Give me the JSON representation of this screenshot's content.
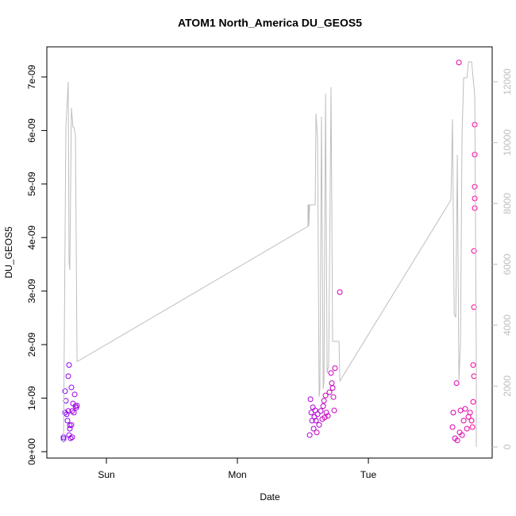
{
  "chart_data": {
    "type": "scatter",
    "title": "ATOM1 North_America DU_GEOS5",
    "xlabel": "Date",
    "ylabel": "DU_GEOS5",
    "xlim": [
      -0.4545,
      2.945
    ],
    "xticks": [
      {
        "value": 0,
        "label": "Sun"
      },
      {
        "value": 1,
        "label": "Mon"
      },
      {
        "value": 2,
        "label": "Tue"
      }
    ],
    "ylim": [
      -1.19e-10,
      7.563e-09
    ],
    "yticks": [
      {
        "value": 0,
        "label": "0e+00"
      },
      {
        "value": 1e-09,
        "label": "1e-09"
      },
      {
        "value": 2e-09,
        "label": "2e-09"
      },
      {
        "value": 3e-09,
        "label": "3e-09"
      },
      {
        "value": 4e-09,
        "label": "4e-09"
      },
      {
        "value": 5e-09,
        "label": "5e-09"
      },
      {
        "value": 6e-09,
        "label": "6e-09"
      },
      {
        "value": 7e-09,
        "label": "7e-09"
      }
    ],
    "y2lim": [
      -365,
      13148
    ],
    "y2ticks": [
      0,
      2000,
      4000,
      6000,
      8000,
      10000,
      12000
    ],
    "y2tick_color": "#bebebe",
    "series": [
      {
        "color_range": [
          "#7f00ff",
          "#ff0090"
        ],
        "x": [
          -0.327,
          -0.327,
          -0.315,
          -0.315,
          -0.309,
          -0.303,
          -0.297,
          -0.291,
          -0.285,
          -0.285,
          -0.279,
          -0.273,
          -0.267,
          -0.267,
          -0.261,
          -0.255,
          -0.248,
          -0.242,
          -0.236,
          -0.23,
          -0.224,
          -0.279,
          -0.291,
          -0.261,
          1.552,
          1.558,
          1.564,
          1.57,
          1.576,
          1.582,
          1.588,
          1.594,
          1.6,
          1.612,
          1.624,
          1.636,
          1.648,
          1.655,
          1.661,
          1.673,
          1.679,
          1.691,
          1.703,
          1.715,
          1.721,
          1.727,
          1.733,
          1.739,
          1.745,
          1.782,
          1.606,
          1.667,
          2.642,
          2.648,
          2.661,
          2.673,
          2.679,
          2.691,
          2.697,
          2.703,
          2.715,
          2.727,
          2.739,
          2.752,
          2.764,
          2.776,
          2.788,
          2.8,
          2.8,
          2.806,
          2.806,
          2.806,
          2.812,
          2.812,
          2.812,
          2.812,
          2.812,
          2.794
        ],
        "values": [
          2.4e-10,
          2.7e-10,
          1.13e-09,
          7.3e-10,
          9.5e-10,
          7e-10,
          5.8e-10,
          1.41e-09,
          1.62e-09,
          3.1e-10,
          4.3e-10,
          2.5e-10,
          1.2e-09,
          5e-10,
          7.6e-10,
          9e-10,
          7.3e-10,
          1.07e-09,
          8.5e-10,
          8.2e-10,
          8.6e-10,
          4.9e-10,
          7.6e-10,
          2.7e-10,
          3.1e-10,
          9.8e-10,
          7.3e-10,
          5.8e-10,
          8.3e-10,
          4.3e-10,
          6.5e-10,
          7.7e-10,
          5.8e-10,
          7e-10,
          5e-10,
          7.6e-10,
          6.1e-10,
          8.5e-10,
          9.5e-10,
          1.05e-09,
          7.3e-10,
          6.7e-10,
          1.11e-09,
          1.47e-09,
          1.28e-09,
          1.19e-09,
          1.02e-09,
          7.7e-10,
          1.56e-09,
          2.98e-09,
          3.6e-10,
          6.4e-10,
          4.6e-10,
          7.3e-10,
          2.5e-10,
          1.28e-09,
          2.1e-10,
          7.27e-09,
          3.6e-10,
          7.7e-10,
          3.1e-10,
          5.8e-10,
          8e-10,
          4.3e-10,
          6.5e-10,
          7.3e-10,
          5.8e-10,
          9.3e-10,
          1.62e-09,
          1.41e-09,
          2.7e-09,
          3.75e-09,
          4.55e-09,
          4.73e-09,
          4.95e-09,
          5.55e-09,
          6.11e-09,
          4.6e-10
        ]
      },
      {
        "type": "line",
        "axis": "y2",
        "color": "#bebebe",
        "x": [
          -0.333,
          -0.327,
          -0.315,
          -0.309,
          -0.291,
          -0.285,
          -0.279,
          -0.267,
          -0.255,
          -0.248,
          -0.236,
          -0.224,
          -0.218,
          1.539,
          1.539,
          1.545,
          1.545,
          1.552,
          1.594,
          1.6,
          1.612,
          1.624,
          1.63,
          1.642,
          1.655,
          1.661,
          1.673,
          1.685,
          1.697,
          1.715,
          1.727,
          1.776,
          1.782,
          2.63,
          2.642,
          2.655,
          2.667,
          2.679,
          2.691,
          2.703,
          2.715,
          2.727,
          2.752,
          2.764,
          2.788,
          2.812,
          2.824,
          2.824
        ],
        "values": [
          209,
          130,
          7122,
          10513,
          12000,
          6078,
          5817,
          11139,
          10513,
          10513,
          10252,
          2817,
          2817,
          7252,
          7957,
          7957,
          7252,
          7957,
          7957,
          10957,
          10122,
          1643,
          1904,
          10852,
          1904,
          2165,
          11609,
          2426,
          2687,
          11817,
          3470,
          3470,
          2165,
          8113,
          10774,
          4383,
          4252,
          9600,
          2165,
          3470,
          10252,
          12130,
          12130,
          12652,
          12652,
          11556,
          2687,
          0
        ]
      }
    ]
  }
}
